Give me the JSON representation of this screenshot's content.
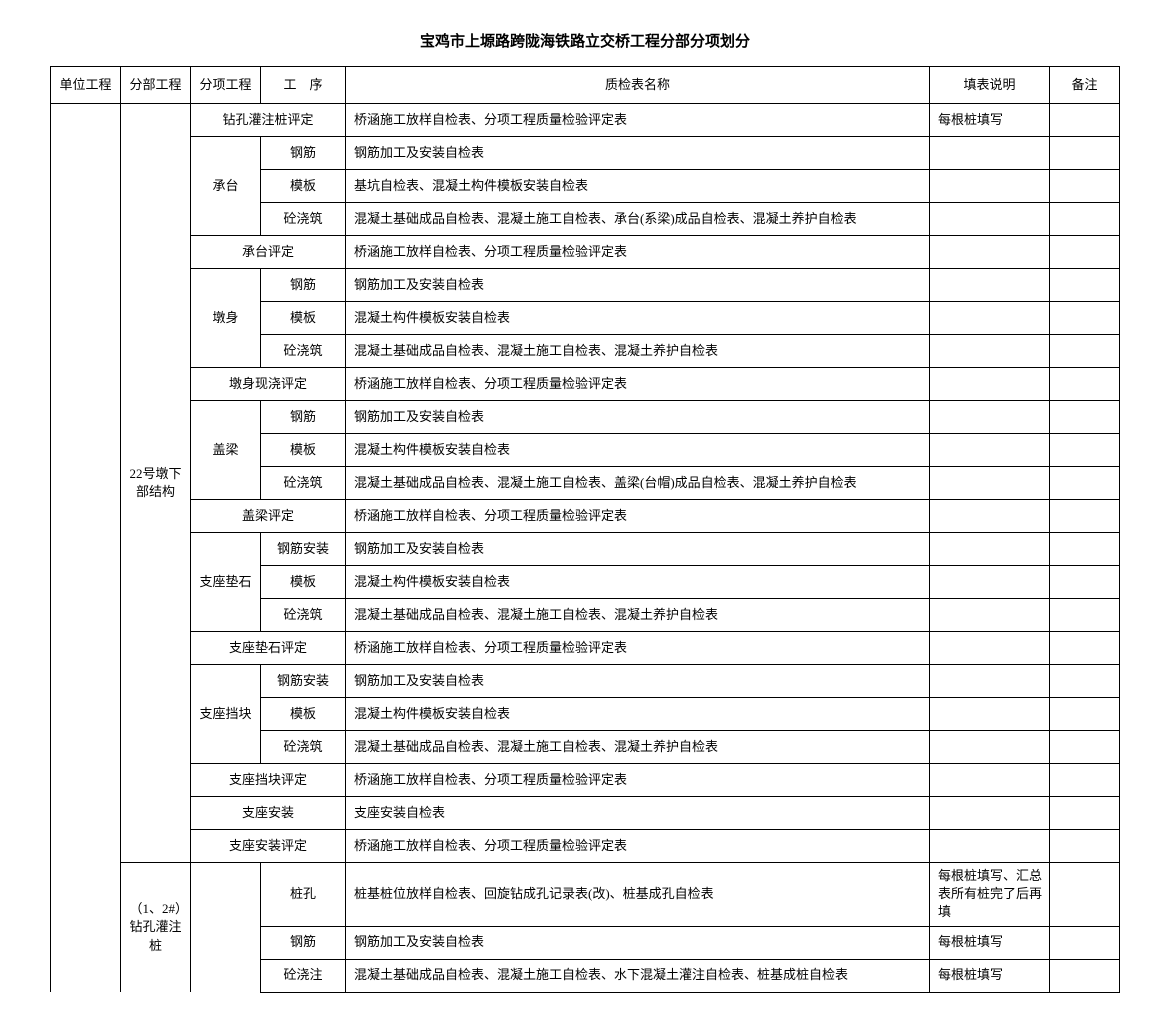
{
  "title": "宝鸡市上塬路跨陇海铁路立交桥工程分部分项划分",
  "headers": {
    "unit": "单位工程",
    "section": "分部工程",
    "item": "分项工程",
    "process": "工　序",
    "name": "质检表名称",
    "desc": "填表说明",
    "note": "备注"
  },
  "section1": "22号墩下部结构",
  "section2": "（1、2#）钻孔灌注桩",
  "rows": {
    "r1_item": "钻孔灌注桩评定",
    "r1_name": "桥涵施工放样自检表、分项工程质量检验评定表",
    "r1_desc": "每根桩填写",
    "r2_item": "承台",
    "r2_process": "钢筋",
    "r2_name": "钢筋加工及安装自检表",
    "r3_process": "模板",
    "r3_name": "基坑自检表、混凝土构件模板安装自检表",
    "r4_process": "砼浇筑",
    "r4_name": "混凝土基础成品自检表、混凝土施工自检表、承台(系梁)成品自检表、混凝土养护自检表",
    "r5_item": "承台评定",
    "r5_name": "桥涵施工放样自检表、分项工程质量检验评定表",
    "r6_item": "墩身",
    "r6_process": "钢筋",
    "r6_name": "钢筋加工及安装自检表",
    "r7_process": "模板",
    "r7_name": "混凝土构件模板安装自检表",
    "r8_process": "砼浇筑",
    "r8_name": "混凝土基础成品自检表、混凝土施工自检表、混凝土养护自检表",
    "r9_item": "墩身现浇评定",
    "r9_name": "桥涵施工放样自检表、分项工程质量检验评定表",
    "r10_item": "盖梁",
    "r10_process": "钢筋",
    "r10_name": "钢筋加工及安装自检表",
    "r11_process": "模板",
    "r11_name": "混凝土构件模板安装自检表",
    "r12_process": "砼浇筑",
    "r12_name": "混凝土基础成品自检表、混凝土施工自检表、盖梁(台帽)成品自检表、混凝土养护自检表",
    "r13_item": "盖梁评定",
    "r13_name": "桥涵施工放样自检表、分项工程质量检验评定表",
    "r14_item": "支座垫石",
    "r14_process": "钢筋安装",
    "r14_name": "钢筋加工及安装自检表",
    "r15_process": "模板",
    "r15_name": "混凝土构件模板安装自检表",
    "r16_process": "砼浇筑",
    "r16_name": "混凝土基础成品自检表、混凝土施工自检表、混凝土养护自检表",
    "r17_item": "支座垫石评定",
    "r17_name": "桥涵施工放样自检表、分项工程质量检验评定表",
    "r18_item": "支座挡块",
    "r18_process": "钢筋安装",
    "r18_name": "钢筋加工及安装自检表",
    "r19_process": "模板",
    "r19_name": "混凝土构件模板安装自检表",
    "r20_process": "砼浇筑",
    "r20_name": "混凝土基础成品自检表、混凝土施工自检表、混凝土养护自检表",
    "r21_item": "支座挡块评定",
    "r21_name": "桥涵施工放样自检表、分项工程质量检验评定表",
    "r22_item": "支座安装",
    "r22_name": "支座安装自检表",
    "r23_item": "支座安装评定",
    "r23_name": "桥涵施工放样自检表、分项工程质量检验评定表",
    "r24_process": "桩孔",
    "r24_name": "桩基桩位放样自检表、回旋钻成孔记录表(改)、桩基成孔自检表",
    "r24_desc": "每根桩填写、汇总表所有桩完了后再填",
    "r25_process": "钢筋",
    "r25_name": "钢筋加工及安装自检表",
    "r25_desc": "每根桩填写",
    "r26_process": "砼浇注",
    "r26_name": "混凝土基础成品自检表、混凝土施工自检表、水下混凝土灌注自检表、桩基成桩自检表",
    "r26_desc": "每根桩填写"
  }
}
